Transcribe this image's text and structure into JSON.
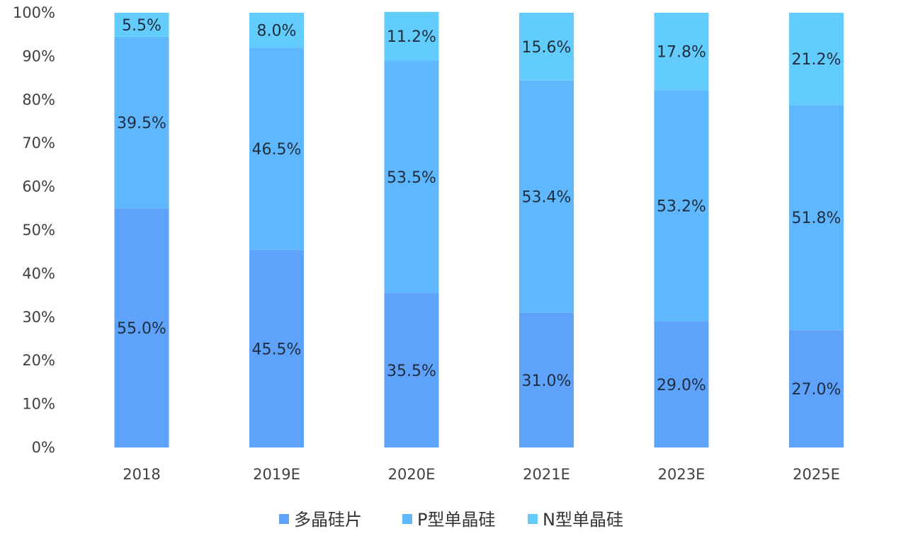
{
  "chart_data": {
    "type": "bar",
    "stacked": true,
    "categories": [
      "2018",
      "2019E",
      "2020E",
      "2021E",
      "2023E",
      "2025E"
    ],
    "series": [
      {
        "name": "多晶硅片",
        "color": "#5ea2fc",
        "values": [
          55.0,
          45.5,
          35.5,
          31.0,
          29.0,
          27.0
        ],
        "labels": [
          "55.0%",
          "45.5%",
          "35.5%",
          "31.0%",
          "29.0%",
          "27.0%"
        ]
      },
      {
        "name": "P型单晶硅",
        "color": "#5fb8fd",
        "values": [
          39.5,
          46.5,
          53.5,
          53.4,
          53.2,
          51.8
        ],
        "labels": [
          "39.5%",
          "46.5%",
          "53.5%",
          "53.4%",
          "53.2%",
          "51.8%"
        ]
      },
      {
        "name": "N型单晶硅",
        "color": "#62cdfd",
        "values": [
          5.5,
          8.0,
          11.2,
          15.6,
          17.8,
          21.2
        ],
        "labels": [
          "5.5%",
          "8.0%",
          "11.2%",
          "15.6%",
          "17.8%",
          "21.2%"
        ]
      }
    ],
    "ylim": [
      0,
      100
    ],
    "yticks": [
      "0%",
      "10%",
      "20%",
      "30%",
      "40%",
      "50%",
      "60%",
      "70%",
      "80%",
      "90%",
      "100%"
    ],
    "legend_position": "bottom",
    "title": "",
    "xlabel": "",
    "ylabel": ""
  }
}
